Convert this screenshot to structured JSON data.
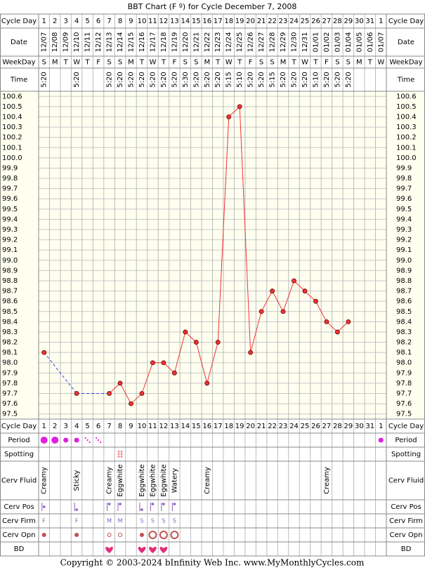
{
  "chart_data": {
    "type": "line",
    "title": "BBT Chart (F º) for Cycle December 7, 2008",
    "row_labels": {
      "cycle_day": "Cycle Day",
      "date": "Date",
      "weekday": "WeekDay",
      "time": "Time",
      "period": "Period",
      "spotting": "Spotting",
      "cerv_fluid": "Cerv Fluid",
      "cerv_pos": "Cerv Pos",
      "cerv_firm": "Cerv Firm",
      "cerv_opn": "Cerv Opn",
      "bd": "BD"
    },
    "categories": [
      1,
      2,
      3,
      4,
      5,
      6,
      7,
      8,
      9,
      10,
      11,
      12,
      13,
      14,
      15,
      16,
      17,
      18,
      19,
      20,
      21,
      22,
      23,
      24,
      25,
      26,
      27,
      28,
      29,
      30,
      31,
      1
    ],
    "dates": [
      "12/07",
      "12/08",
      "12/09",
      "12/10",
      "12/11",
      "12/12",
      "12/13",
      "12/14",
      "12/15",
      "12/16",
      "12/17",
      "12/18",
      "12/19",
      "12/20",
      "12/21",
      "12/22",
      "12/23",
      "12/24",
      "12/25",
      "12/26",
      "12/27",
      "12/28",
      "12/29",
      "12/30",
      "12/31",
      "01/01",
      "01/02",
      "01/03",
      "01/04",
      "01/05",
      "01/06",
      "01/07"
    ],
    "weekdays": [
      "S",
      "M",
      "T",
      "W",
      "T",
      "F",
      "S",
      "S",
      "M",
      "T",
      "W",
      "T",
      "F",
      "S",
      "S",
      "M",
      "T",
      "W",
      "T",
      "F",
      "S",
      "S",
      "M",
      "T",
      "W",
      "T",
      "F",
      "S",
      "S",
      "M",
      "T",
      "W"
    ],
    "times": [
      "5:20",
      null,
      null,
      "5:20",
      null,
      null,
      "5:20",
      "5:20",
      "5:20",
      "5:20",
      "5:20",
      "5:20",
      "5:20",
      "5:30",
      "5:20",
      "5:20",
      "5:20",
      "5:15",
      "5:10",
      "5:20",
      "5:20",
      "5:15",
      "5:20",
      "5:20",
      "5:20",
      "5:10",
      "5:20",
      "5:20",
      "5:20",
      null,
      null,
      null
    ],
    "values": [
      98.1,
      null,
      null,
      97.7,
      null,
      null,
      97.7,
      97.8,
      97.6,
      97.7,
      98.0,
      98.0,
      97.9,
      98.3,
      98.2,
      97.8,
      98.2,
      100.4,
      100.5,
      98.1,
      98.5,
      98.7,
      98.5,
      98.8,
      98.7,
      98.6,
      98.4,
      98.3,
      98.4,
      null,
      null,
      null
    ],
    "color": "#ee3333",
    "ylim": [
      97.45,
      100.65
    ],
    "yticks": [
      {
        "value": 100.6,
        "label": "100.6"
      },
      {
        "value": 100.5,
        "label": "100.5"
      },
      {
        "value": 100.4,
        "label": "100.4"
      },
      {
        "value": 100.3,
        "label": "100.3"
      },
      {
        "value": 100.2,
        "label": "100.2"
      },
      {
        "value": 100.1,
        "label": "100.1"
      },
      {
        "value": 100,
        "label": "100.0"
      },
      99.9,
      99.8,
      99.7,
      99.6,
      99.5,
      99.4,
      99.3,
      99.2,
      99.1,
      {
        "value": 99,
        "label": "99.0"
      },
      98.9,
      98.8,
      98.7,
      98.6,
      98.5,
      98.4,
      98.3,
      98.2,
      98.1,
      {
        "value": 98,
        "label": "98.0"
      },
      97.9,
      97.8,
      97.7,
      97.6,
      97.5
    ],
    "grid": true,
    "cervical_fluid": [
      "Creamy",
      null,
      null,
      "Sticky",
      null,
      null,
      "Creamy",
      "Eggwhite",
      null,
      "Eggwhite",
      "Eggwhite",
      "Eggwhite",
      "Watery",
      null,
      null,
      "Creamy",
      null,
      null,
      null,
      null,
      null,
      null,
      null,
      null,
      null,
      null,
      "Creamy",
      null,
      null,
      null,
      null,
      null
    ],
    "cervical_firmness": [
      "F",
      null,
      null,
      "F",
      null,
      null,
      "M",
      "M",
      null,
      "S",
      "S",
      "S",
      "S",
      null,
      null,
      null,
      null,
      null,
      null,
      null,
      null,
      null,
      null,
      null,
      null,
      null,
      null,
      null,
      null,
      null,
      null,
      null
    ]
  },
  "footer": "Copyright © 2003-2024 bInfinity Web Inc.     www.MyMonthlyCycles.com"
}
